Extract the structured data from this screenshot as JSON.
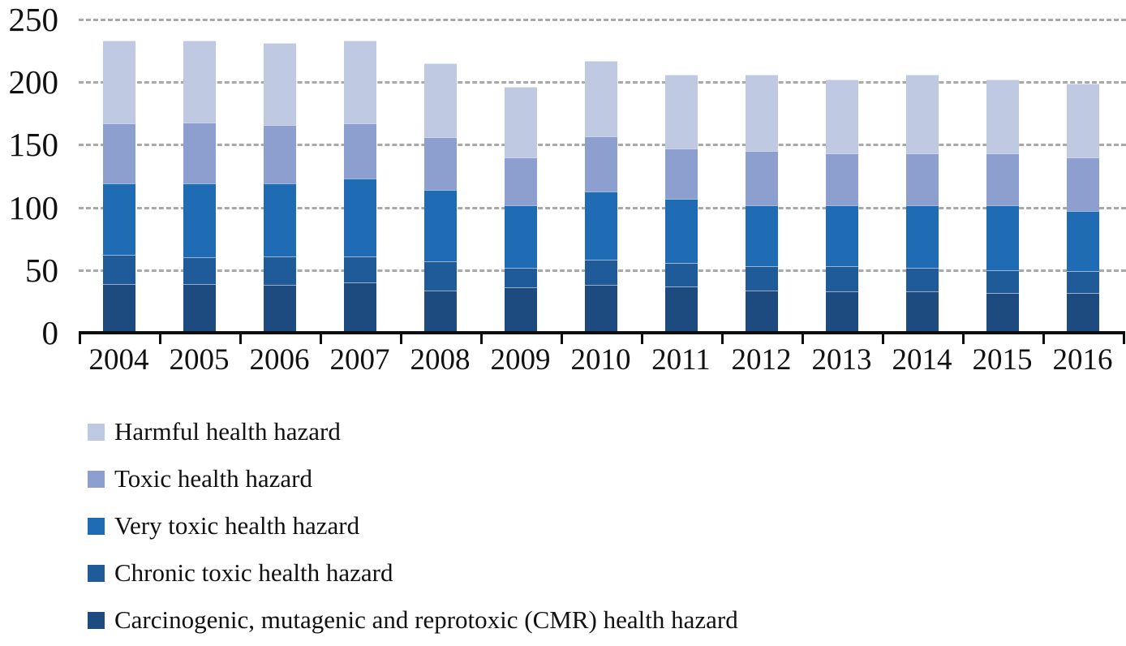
{
  "chart_data": {
    "type": "bar",
    "stacked": true,
    "title": "",
    "xlabel": "",
    "ylabel": "",
    "categories": [
      "2004",
      "2005",
      "2006",
      "2007",
      "2008",
      "2009",
      "2010",
      "2011",
      "2012",
      "2013",
      "2014",
      "2015",
      "2016"
    ],
    "series": [
      {
        "name": "Carcinogenic, mutagenic and reprotoxic (CMR) health hazard",
        "color": "#1d4b80",
        "values": [
          39,
          39,
          38,
          40,
          34,
          36,
          38,
          37,
          34,
          33,
          33,
          32,
          32
        ]
      },
      {
        "name": "Chronic toxic health hazard",
        "color": "#1f5a99",
        "values": [
          23,
          21,
          23,
          21,
          23,
          16,
          20,
          19,
          19,
          20,
          19,
          18,
          17
        ]
      },
      {
        "name": "Very toxic health hazard",
        "color": "#1f6cb4",
        "values": [
          57,
          59,
          58,
          62,
          57,
          50,
          55,
          51,
          49,
          49,
          50,
          52,
          48
        ]
      },
      {
        "name": "Toxic health hazard",
        "color": "#8c9fce",
        "values": [
          48,
          49,
          47,
          44,
          42,
          38,
          44,
          40,
          43,
          41,
          41,
          41,
          43
        ]
      },
      {
        "name": "Harmful health hazard",
        "color": "#bfc9e2",
        "values": [
          66,
          65,
          65,
          66,
          59,
          56,
          60,
          59,
          61,
          59,
          63,
          59,
          59
        ]
      }
    ],
    "totals": [
      233,
      233,
      231,
      233,
      215,
      196,
      217,
      206,
      206,
      202,
      206,
      202,
      199
    ],
    "ylim": [
      0,
      250
    ],
    "yticks": [
      "0",
      "50",
      "100",
      "150",
      "200",
      "250"
    ],
    "grid": "horizontal dashed",
    "legend_position": "bottom-left"
  },
  "legend": {
    "items": [
      {
        "label": "Harmful health hazard",
        "color": "#bfc9e2"
      },
      {
        "label": "Toxic health hazard",
        "color": "#8c9fce"
      },
      {
        "label": "Very toxic health hazard",
        "color": "#1f6cb4"
      },
      {
        "label": "Chronic toxic health hazard",
        "color": "#1f5a99"
      },
      {
        "label": "Carcinogenic, mutagenic and reprotoxic (CMR) health hazard",
        "color": "#1d4b80"
      }
    ]
  },
  "colors": {
    "axis": "#0d0d0d",
    "gridline": "#a9a9a9",
    "text": "#111111",
    "background": "#ffffff"
  }
}
